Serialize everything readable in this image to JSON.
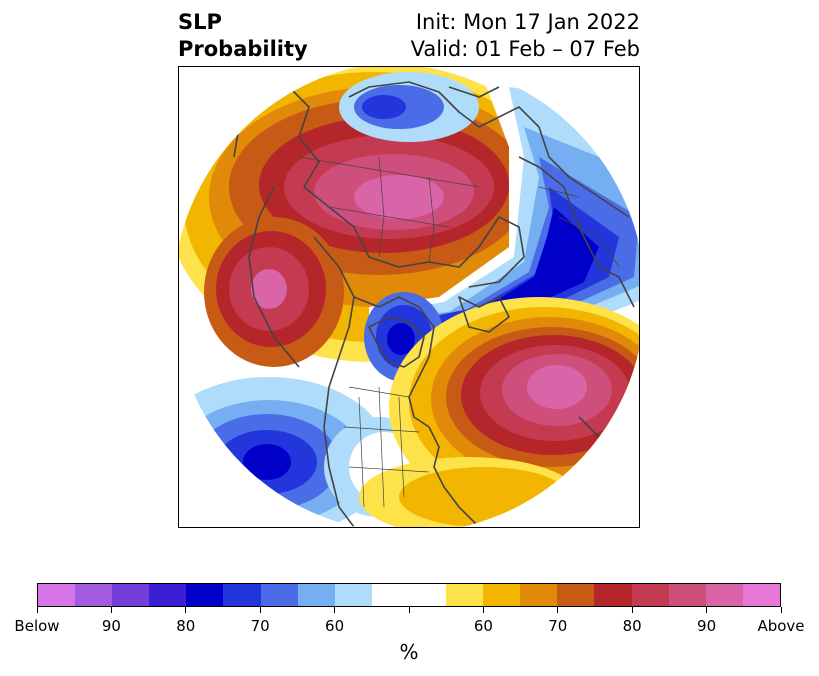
{
  "title": {
    "left_line1": "SLP",
    "left_line2": "Probability",
    "right_line1": "Init: Mon 17 Jan 2022",
    "right_line2": "Valid: 01 Feb – 07 Feb"
  },
  "colorbar": {
    "unit": "%",
    "colors": [
      "#d676e6",
      "#a35ae0",
      "#7240d8",
      "#3b1ed6",
      "#0000c8",
      "#2236dc",
      "#4a6ce6",
      "#76aef2",
      "#aedcfa",
      "#ffffff",
      "#ffffff",
      "#fee24a",
      "#f2b500",
      "#e18a0a",
      "#c75a14",
      "#b4262a",
      "#c43a50",
      "#cf4f7c",
      "#d964a8",
      "#e878d8"
    ],
    "labels": [
      "Below",
      "90",
      "80",
      "70",
      "60",
      "60",
      "70",
      "80",
      "90",
      "Above"
    ]
  },
  "colors": {
    "below_strong": "#0000c8",
    "above_strong": "#d964a8",
    "coastline": "#444444"
  }
}
